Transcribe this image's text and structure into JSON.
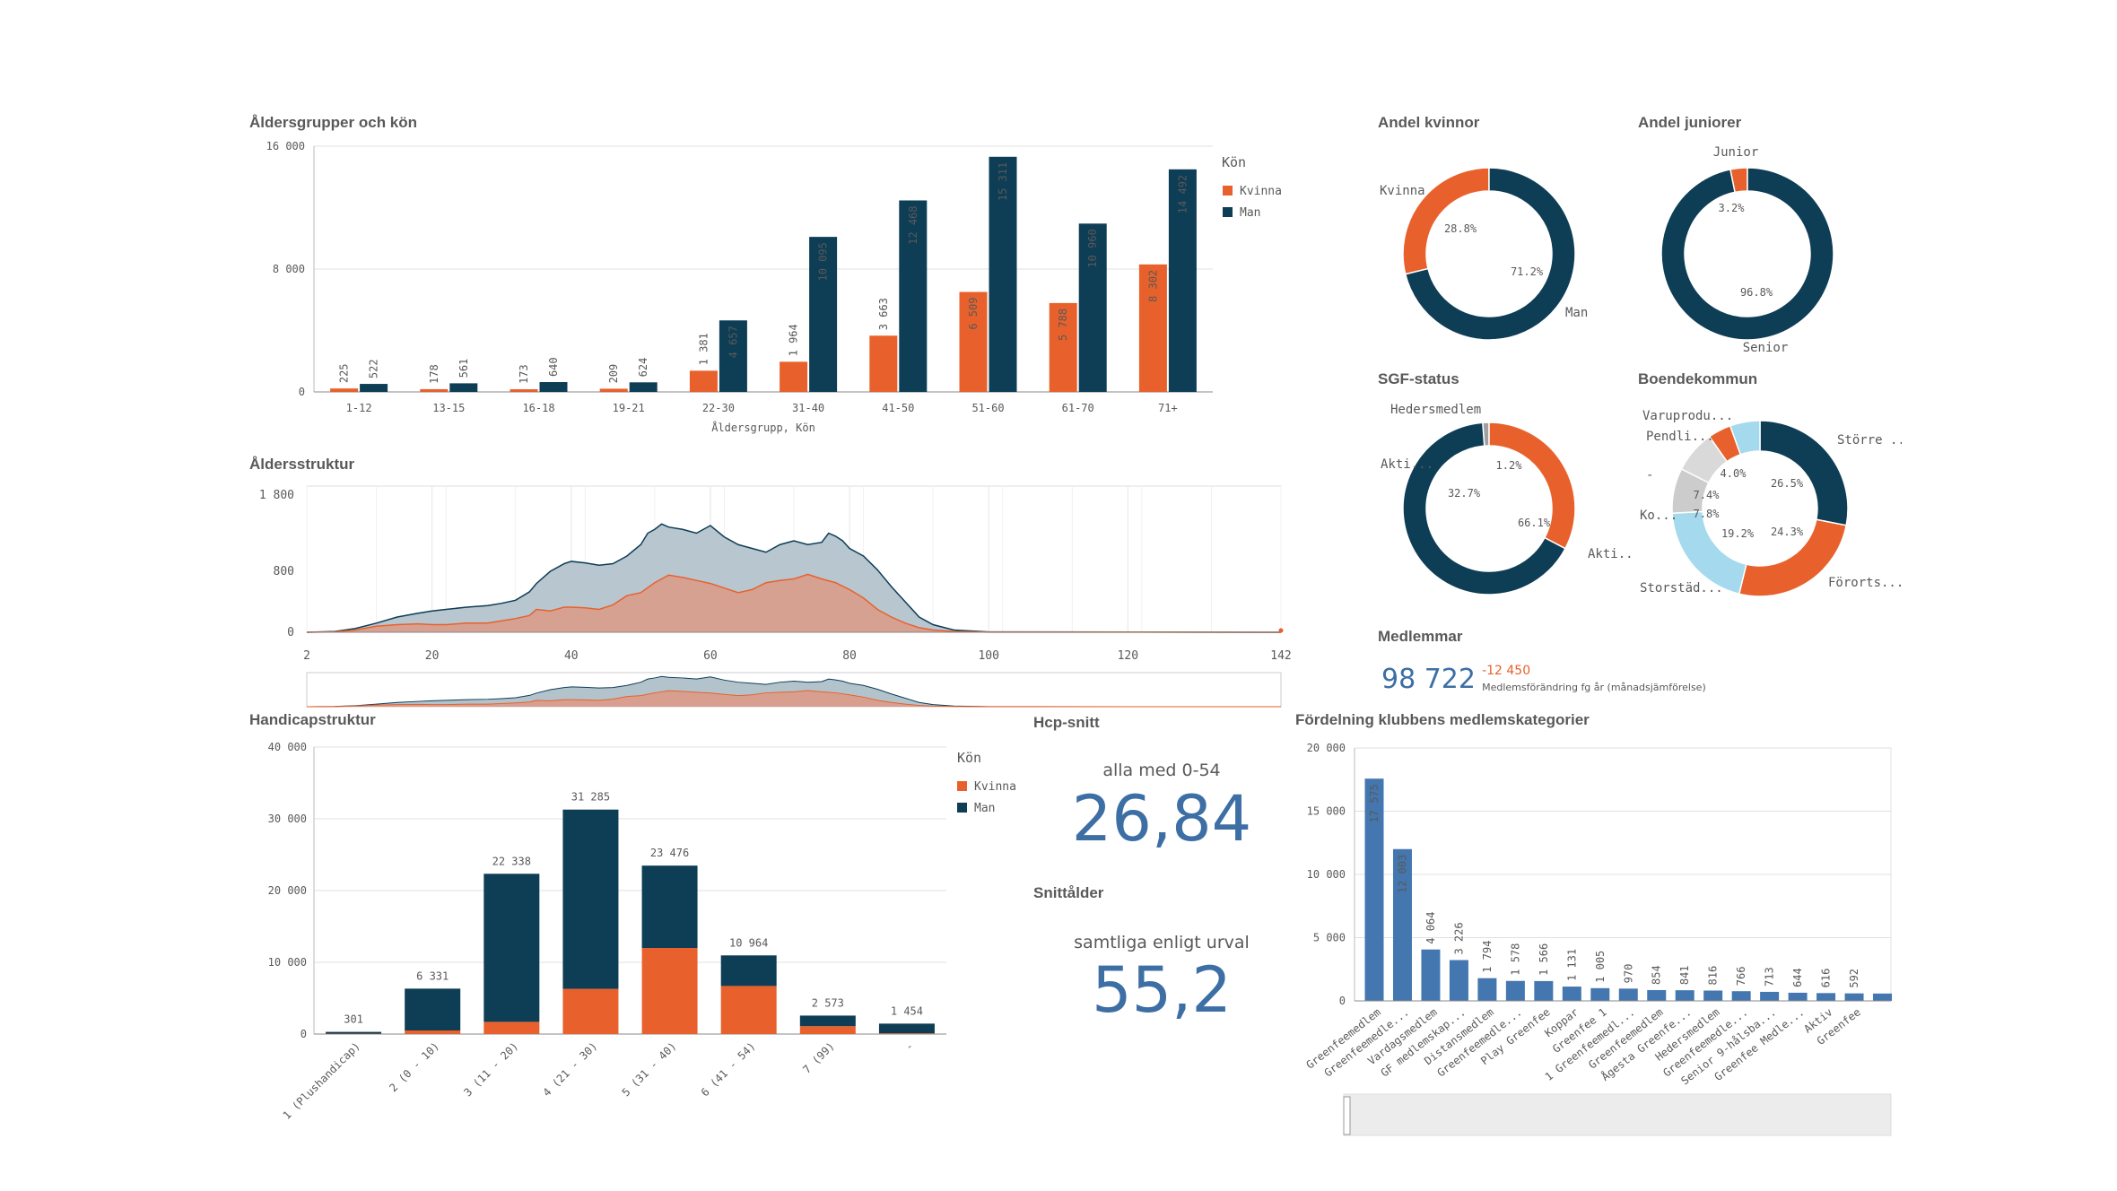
{
  "colors": {
    "kvinna": "#e8612c",
    "man": "#0e3d56",
    "blue": "#4477b0",
    "lightblue": "#a4d9ee",
    "grey": "#cccccc",
    "darkgrey": "#a0a0a0",
    "areaMan": "#b3c3cc",
    "areaKvinna": "#d89f8e"
  },
  "chart_data": [
    {
      "id": "age_gender",
      "type": "bar",
      "title": "Åldersgrupper och kön",
      "xlabel": "Åldersgrupp, Kön",
      "legend_title": "Kön",
      "categories": [
        "1-12",
        "13-15",
        "16-18",
        "19-21",
        "22-30",
        "31-40",
        "41-50",
        "51-60",
        "61-70",
        "71+"
      ],
      "series": [
        {
          "name": "Kvinna",
          "values": [
            225,
            178,
            173,
            209,
            1381,
            1964,
            3663,
            6509,
            5788,
            8302
          ],
          "labels": [
            "225",
            "178",
            "173",
            "209",
            "1 381",
            "1 964",
            "3 663",
            "6 509",
            "5 788",
            "8 302"
          ]
        },
        {
          "name": "Man",
          "values": [
            522,
            561,
            640,
            624,
            4657,
            10095,
            12468,
            15311,
            10960,
            14492
          ],
          "labels": [
            "522",
            "561",
            "640",
            "624",
            "4 657",
            "10 095",
            "12 468",
            "15 311",
            "10 960",
            "14 492"
          ]
        }
      ],
      "ylim": [
        0,
        16000
      ],
      "yticks": [
        0,
        8000,
        16000
      ],
      "ytick_labels": [
        "0",
        "8 000",
        "16 000"
      ]
    },
    {
      "id": "age_structure",
      "type": "area",
      "title": "Åldersstruktur",
      "xlim": [
        2,
        142
      ],
      "xticks": [
        2,
        20,
        40,
        60,
        80,
        100,
        120,
        142
      ],
      "ylim": [
        0,
        1800
      ],
      "yticks": [
        0,
        800,
        1800
      ],
      "ytick_labels": [
        "0",
        "800",
        "1 800"
      ],
      "series": [
        {
          "name": "Man",
          "x": [
            2,
            6,
            9,
            12,
            15,
            18,
            20,
            22,
            25,
            28,
            30,
            32,
            34,
            35,
            37,
            39,
            40,
            42,
            44,
            46,
            48,
            50,
            51,
            52,
            53,
            54,
            56,
            58,
            60,
            62,
            64,
            66,
            68,
            70,
            72,
            74,
            76,
            77,
            78,
            79,
            80,
            82,
            84,
            86,
            88,
            90,
            92,
            95,
            100,
            142
          ],
          "y": [
            0,
            10,
            50,
            120,
            200,
            250,
            280,
            300,
            330,
            350,
            380,
            420,
            530,
            640,
            800,
            900,
            930,
            910,
            880,
            900,
            1000,
            1150,
            1300,
            1350,
            1420,
            1380,
            1350,
            1300,
            1400,
            1250,
            1150,
            1100,
            1050,
            1150,
            1200,
            1150,
            1180,
            1300,
            1260,
            1200,
            1100,
            1000,
            820,
            600,
            400,
            200,
            100,
            30,
            5,
            0
          ]
        },
        {
          "name": "Kvinna",
          "x": [
            2,
            6,
            9,
            12,
            15,
            18,
            20,
            22,
            25,
            28,
            30,
            32,
            34,
            35,
            37,
            39,
            40,
            42,
            44,
            46,
            48,
            50,
            52,
            54,
            56,
            58,
            60,
            62,
            64,
            66,
            68,
            70,
            72,
            74,
            76,
            78,
            80,
            82,
            84,
            86,
            88,
            90,
            92,
            95,
            100,
            142
          ],
          "y": [
            0,
            5,
            30,
            80,
            100,
            110,
            100,
            100,
            120,
            120,
            150,
            180,
            220,
            300,
            280,
            330,
            330,
            320,
            300,
            360,
            480,
            520,
            650,
            750,
            720,
            680,
            640,
            580,
            520,
            560,
            650,
            680,
            700,
            760,
            700,
            650,
            560,
            450,
            300,
            200,
            120,
            60,
            30,
            10,
            2,
            0
          ]
        }
      ]
    },
    {
      "id": "andel_kvinnor",
      "type": "pie",
      "title": "Andel kvinnor",
      "labels": [
        "Kvinna",
        "Man"
      ],
      "values": [
        28.8,
        71.2
      ],
      "value_labels": [
        "28.8%",
        "71.2%"
      ]
    },
    {
      "id": "andel_juniorer",
      "type": "pie",
      "title": "Andel juniorer",
      "labels": [
        "Junior",
        "Senior"
      ],
      "values": [
        3.2,
        96.8
      ],
      "value_labels": [
        "3.2%",
        "96.8%"
      ]
    },
    {
      "id": "sgf_status",
      "type": "pie",
      "title": "SGF-status",
      "labels": [
        "Hedersmedlem",
        "Akti...",
        "Akti..."
      ],
      "values": [
        1.2,
        32.7,
        66.1
      ],
      "value_labels": [
        "1.2%",
        "32.7%",
        "66.1%"
      ]
    },
    {
      "id": "boendekommun",
      "type": "pie",
      "title": "Boendekommun",
      "labels": [
        "Större ...",
        "Förorts...",
        "Storstäd...",
        "Ko...",
        "-",
        "Pendli...",
        "Varuprodu..."
      ],
      "values": [
        26.5,
        24.3,
        19.2,
        7.8,
        7.4,
        4.0,
        5.2
      ],
      "value_labels": [
        "26.5%",
        "24.3%",
        "19.2%",
        "7.8%",
        "7.4%",
        "4.0%",
        ""
      ]
    },
    {
      "id": "handicap",
      "type": "bar",
      "title": "Handicapstruktur",
      "legend_title": "Kön",
      "categories": [
        "1 (Plushandicap)",
        "2 (0 - 10)",
        "3 (11 - 20)",
        "4 (21 - 30)",
        "5 (31 - 40)",
        "6 (41 - 54)",
        "7 (99)",
        "-"
      ],
      "series": [
        {
          "name": "Kvinna",
          "values": [
            50,
            500,
            1700,
            6300,
            12000,
            6700,
            1100,
            100
          ]
        },
        {
          "name": "Man",
          "values": [
            251,
            5831,
            20638,
            24985,
            11476,
            4264,
            1473,
            1354
          ]
        }
      ],
      "total_labels": [
        "301",
        "6 331",
        "22 338",
        "31 285",
        "23 476",
        "10 964",
        "2 573",
        "1 454"
      ],
      "ylim": [
        0,
        40000
      ],
      "yticks": [
        0,
        10000,
        20000,
        30000,
        40000
      ],
      "ytick_labels": [
        "0",
        "10 000",
        "20 000",
        "30 000",
        "40 000"
      ]
    },
    {
      "id": "member_categories",
      "type": "bar",
      "title": "Fördelning klubbens medlemskategorier",
      "categories": [
        "Greenfeemedlem",
        "Greenfeemedle...",
        "Vardagsmedlem",
        "GF medlemskap...",
        "Distansmedlem",
        "Greenfeemedle...",
        "Play Greenfee",
        "Koppar",
        "Greenfee 1",
        "1 Greenfeemedl...",
        "Greenfeemedlem",
        "Ågesta Greenfe...",
        "Hedersmedlem",
        "Greenfeemedle...",
        "Senior 9-hålsba...",
        "Greenfee Medle...",
        "Aktiv",
        "Greenfee",
        ""
      ],
      "values": [
        17575,
        12003,
        4064,
        3226,
        1794,
        1578,
        1566,
        1131,
        1005,
        970,
        854,
        841,
        816,
        766,
        713,
        644,
        616,
        592,
        580
      ],
      "value_labels": [
        "17 575",
        "12 003",
        "4 064",
        "3 226",
        "1 794",
        "1 578",
        "1 566",
        "1 131",
        "1 005",
        "970",
        "854",
        "841",
        "816",
        "766",
        "713",
        "644",
        "616",
        "592",
        ""
      ],
      "ylim": [
        0,
        20000
      ],
      "yticks": [
        0,
        5000,
        10000,
        15000,
        20000
      ],
      "ytick_labels": [
        "0",
        "5 000",
        "10 000",
        "15 000",
        "20 000"
      ]
    }
  ],
  "kpis": {
    "hcp_title": "Hcp-snitt",
    "hcp_sub": "alla med 0-54",
    "hcp_value": "26,84",
    "age_title": "Snittålder",
    "age_sub": "samtliga enligt urval",
    "age_value": "55,2",
    "members_title": "Medlemmar",
    "members_value": "98 722",
    "members_change": "-12 450",
    "members_change_label": "Medlemsförändring fg år (månadsjämförelse)"
  }
}
